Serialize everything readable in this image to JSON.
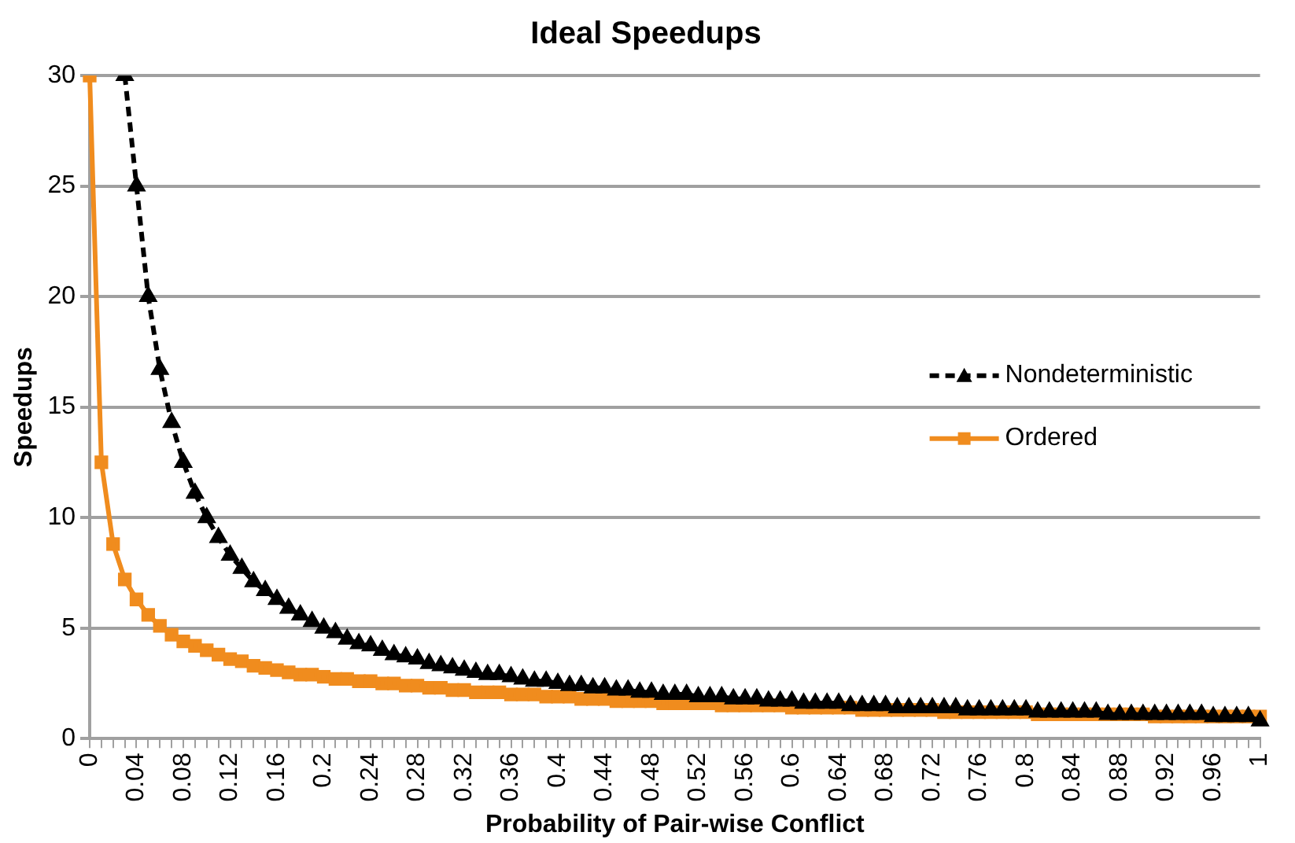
{
  "chart_data": {
    "type": "line",
    "title": "Ideal Speedups",
    "xlabel": "Probability of Pair-wise Conflict",
    "ylabel": "Speedups",
    "categories": [
      "0",
      null,
      null,
      null,
      "0.04",
      null,
      null,
      null,
      "0.08",
      null,
      null,
      null,
      "0.12",
      null,
      null,
      null,
      "0.16",
      null,
      null,
      null,
      "0.2",
      null,
      null,
      null,
      "0.24",
      null,
      null,
      null,
      "0.28",
      null,
      null,
      null,
      "0.32",
      null,
      null,
      null,
      "0.36",
      null,
      null,
      null,
      "0.4",
      null,
      null,
      null,
      "0.44",
      null,
      null,
      null,
      "0.48",
      null,
      null,
      null,
      "0.52",
      null,
      null,
      null,
      "0.56",
      null,
      null,
      null,
      "0.6",
      null,
      null,
      null,
      "0.64",
      null,
      null,
      null,
      "0.68",
      null,
      null,
      null,
      "0.72",
      null,
      null,
      null,
      "0.76",
      null,
      null,
      null,
      "0.8",
      null,
      null,
      null,
      "0.84",
      null,
      null,
      null,
      "0.88",
      null,
      null,
      null,
      "0.92",
      null,
      null,
      null,
      "0.96",
      null,
      null,
      null,
      "1"
    ],
    "series": [
      {
        "name": "Nondeterministic",
        "color": "#000000",
        "marker": "triangle",
        "line_style": "dashed",
        "values": [
          null,
          null,
          null,
          30,
          25,
          20,
          16.7,
          14.3,
          12.5,
          11.1,
          10,
          9.1,
          8.3,
          7.7,
          7.1,
          6.7,
          6.3,
          5.9,
          5.6,
          5.3,
          5,
          4.8,
          4.5,
          4.3,
          4.2,
          4,
          3.8,
          3.7,
          3.6,
          3.4,
          3.3,
          3.2,
          3.1,
          3.0,
          2.9,
          2.9,
          2.8,
          2.7,
          2.6,
          2.6,
          2.5,
          2.4,
          2.4,
          2.3,
          2.3,
          2.2,
          2.2,
          2.1,
          2.1,
          2.0,
          2.0,
          2.0,
          1.9,
          1.9,
          1.9,
          1.8,
          1.8,
          1.8,
          1.7,
          1.7,
          1.7,
          1.6,
          1.6,
          1.6,
          1.6,
          1.5,
          1.5,
          1.5,
          1.5,
          1.4,
          1.4,
          1.4,
          1.4,
          1.4,
          1.4,
          1.3,
          1.3,
          1.3,
          1.3,
          1.3,
          1.3,
          1.2,
          1.2,
          1.2,
          1.2,
          1.2,
          1.2,
          1.1,
          1.1,
          1.1,
          1.1,
          1.1,
          1.1,
          1.1,
          1.1,
          1.1,
          1.0,
          1.0,
          1.0,
          1.0,
          0.8
        ]
      },
      {
        "name": "Ordered",
        "color": "#f08c1e",
        "marker": "square",
        "line_style": "solid",
        "values": [
          30,
          12.5,
          8.8,
          7.2,
          6.3,
          5.6,
          5.1,
          4.7,
          4.4,
          4.2,
          4.0,
          3.8,
          3.6,
          3.5,
          3.3,
          3.2,
          3.1,
          3.0,
          2.9,
          2.9,
          2.8,
          2.7,
          2.7,
          2.6,
          2.6,
          2.5,
          2.5,
          2.4,
          2.4,
          2.3,
          2.3,
          2.2,
          2.2,
          2.1,
          2.1,
          2.1,
          2.0,
          2.0,
          2.0,
          1.9,
          1.9,
          1.9,
          1.8,
          1.8,
          1.8,
          1.7,
          1.7,
          1.7,
          1.7,
          1.6,
          1.6,
          1.6,
          1.6,
          1.6,
          1.5,
          1.5,
          1.5,
          1.5,
          1.5,
          1.5,
          1.4,
          1.4,
          1.4,
          1.4,
          1.4,
          1.4,
          1.3,
          1.3,
          1.3,
          1.3,
          1.3,
          1.3,
          1.3,
          1.2,
          1.2,
          1.2,
          1.2,
          1.2,
          1.2,
          1.2,
          1.2,
          1.1,
          1.1,
          1.1,
          1.1,
          1.1,
          1.1,
          1.1,
          1.1,
          1.1,
          1.1,
          1.0,
          1.0,
          1.0,
          1.0,
          1.0,
          1.0,
          1.0,
          1.0,
          1.0,
          1.0
        ]
      }
    ],
    "ylim": [
      0,
      30
    ],
    "yticks": [
      0,
      5,
      10,
      15,
      20,
      25,
      30
    ],
    "grid": "y",
    "legend": "right"
  }
}
